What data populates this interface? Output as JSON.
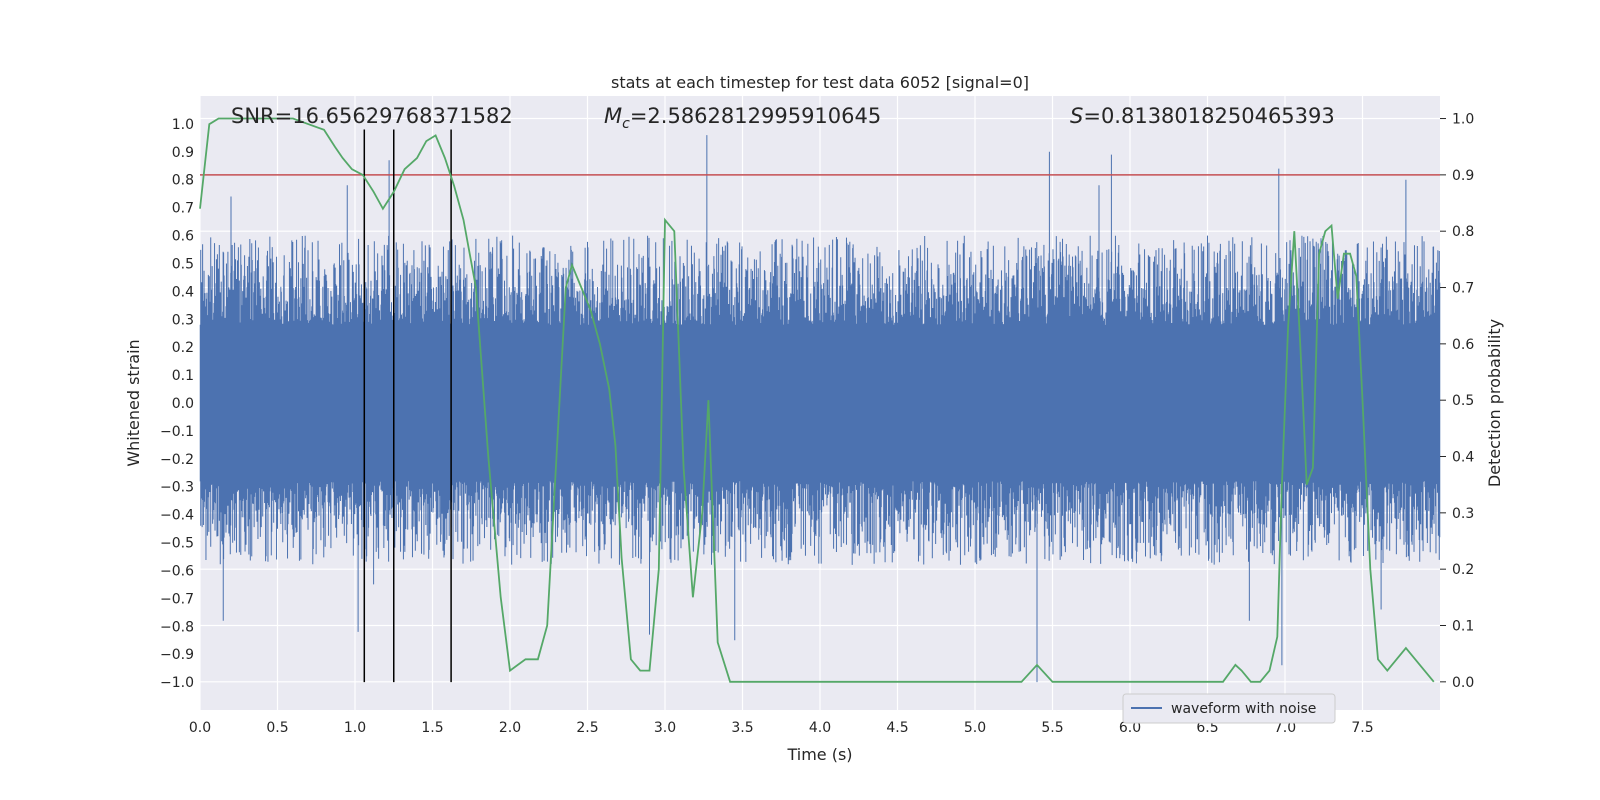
{
  "chart_data": {
    "type": "line",
    "title": "stats at each timestep for test data 6052 [signal=0]",
    "xlabel": "Time (s)",
    "ylabel": "Whitened strain",
    "ylabel_right": "Detection probability",
    "xlim": [
      0.0,
      8.0
    ],
    "ylim": [
      -1.1,
      1.1
    ],
    "ylim_right": [
      -0.05,
      1.04
    ],
    "x_ticks": [
      "0.0",
      "0.5",
      "1.0",
      "1.5",
      "2.0",
      "2.5",
      "3.0",
      "3.5",
      "4.0",
      "4.5",
      "5.0",
      "5.5",
      "6.0",
      "6.5",
      "7.0",
      "7.5"
    ],
    "y_ticks": [
      "1.0",
      "0.9",
      "0.8",
      "0.7",
      "0.6",
      "0.5",
      "0.4",
      "0.3",
      "0.2",
      "0.1",
      "0.0",
      "−0.1",
      "−0.2",
      "−0.3",
      "−0.4",
      "−0.5",
      "−0.6",
      "−0.7",
      "−0.8",
      "−0.9",
      "−1.0"
    ],
    "y_right_ticks": [
      "1.0",
      "0.9",
      "0.8",
      "0.7",
      "0.6",
      "0.5",
      "0.4",
      "0.3",
      "0.2",
      "0.1",
      "0.0"
    ],
    "grid": true,
    "legend_position": "bottom-right",
    "annotations": {
      "snr": "SNR=16.65629768371582",
      "mc_symbol": "M",
      "mc_sub": "c",
      "mc_value": "=2.5862812995910645",
      "s_symbol": "S",
      "s_value": "=0.8138018250465393"
    },
    "threshold": {
      "y_right": 0.9,
      "color": "#c44e52"
    },
    "vlines_x": [
      1.06,
      1.25,
      1.62
    ],
    "vline_range": [
      -1.0,
      0.98
    ],
    "waveform_series": {
      "name": "waveform with noise",
      "color": "#4c72b0",
      "peak_events": [
        {
          "x": 0.2,
          "y": 0.74
        },
        {
          "x": 0.15,
          "y": -0.78
        },
        {
          "x": 1.02,
          "y": -0.82
        },
        {
          "x": 1.22,
          "y": 0.87
        },
        {
          "x": 1.12,
          "y": -0.65
        },
        {
          "x": 3.27,
          "y": 0.96
        },
        {
          "x": 3.45,
          "y": -0.85
        },
        {
          "x": 2.9,
          "y": -0.83
        },
        {
          "x": 5.48,
          "y": 0.9
        },
        {
          "x": 5.88,
          "y": 0.89
        },
        {
          "x": 5.4,
          "y": -1.0
        },
        {
          "x": 6.96,
          "y": 0.84
        },
        {
          "x": 6.98,
          "y": -0.94
        },
        {
          "x": 7.78,
          "y": 0.8
        },
        {
          "x": 7.62,
          "y": -0.74
        },
        {
          "x": 5.8,
          "y": 0.78
        },
        {
          "x": 0.95,
          "y": 0.78
        },
        {
          "x": 6.77,
          "y": -0.78
        }
      ]
    },
    "probability_series": {
      "color": "#55a868",
      "x": [
        0.0,
        0.06,
        0.12,
        0.2,
        0.3,
        0.4,
        0.5,
        0.6,
        0.7,
        0.8,
        0.87,
        0.92,
        0.98,
        1.05,
        1.12,
        1.18,
        1.25,
        1.32,
        1.4,
        1.46,
        1.52,
        1.58,
        1.64,
        1.7,
        1.78,
        1.86,
        1.94,
        2.0,
        2.05,
        2.1,
        2.18,
        2.24,
        2.3,
        2.36,
        2.4,
        2.46,
        2.52,
        2.58,
        2.64,
        2.68,
        2.72,
        2.78,
        2.84,
        2.9,
        2.96,
        3.0,
        3.06,
        3.12,
        3.18,
        3.24,
        3.28,
        3.34,
        3.42,
        3.5,
        3.6,
        3.7,
        3.8,
        3.9,
        4.0,
        4.1,
        4.2,
        4.3,
        4.4,
        4.5,
        4.6,
        4.7,
        4.8,
        4.9,
        5.0,
        5.1,
        5.2,
        5.3,
        5.4,
        5.5,
        5.6,
        5.7,
        5.8,
        5.9,
        6.0,
        6.1,
        6.2,
        6.3,
        6.4,
        6.5,
        6.6,
        6.68,
        6.72,
        6.78,
        6.84,
        6.9,
        6.95,
        6.98,
        7.02,
        7.06,
        7.1,
        7.14,
        7.18,
        7.22,
        7.26,
        7.3,
        7.34,
        7.38,
        7.42,
        7.46,
        7.5,
        7.55,
        7.6,
        7.66,
        7.72,
        7.78,
        7.84,
        7.9,
        7.96
      ],
      "y": [
        0.84,
        0.99,
        1.0,
        1.0,
        1.0,
        1.0,
        1.0,
        1.0,
        0.99,
        0.98,
        0.95,
        0.93,
        0.91,
        0.9,
        0.87,
        0.84,
        0.87,
        0.91,
        0.93,
        0.96,
        0.97,
        0.93,
        0.88,
        0.82,
        0.7,
        0.4,
        0.15,
        0.02,
        0.03,
        0.04,
        0.04,
        0.1,
        0.4,
        0.7,
        0.74,
        0.7,
        0.66,
        0.6,
        0.52,
        0.42,
        0.22,
        0.04,
        0.02,
        0.02,
        0.2,
        0.82,
        0.8,
        0.38,
        0.15,
        0.3,
        0.5,
        0.07,
        0.0,
        0.0,
        0.0,
        0.0,
        0.0,
        0.0,
        0.0,
        0.0,
        0.0,
        0.0,
        0.0,
        0.0,
        0.0,
        0.0,
        0.0,
        0.0,
        0.0,
        0.0,
        0.0,
        0.0,
        0.03,
        0.0,
        0.0,
        0.0,
        0.0,
        0.0,
        0.0,
        0.0,
        0.0,
        0.0,
        0.0,
        0.0,
        0.0,
        0.03,
        0.02,
        0.0,
        0.0,
        0.02,
        0.08,
        0.35,
        0.63,
        0.8,
        0.59,
        0.35,
        0.38,
        0.76,
        0.8,
        0.81,
        0.68,
        0.76,
        0.76,
        0.72,
        0.5,
        0.2,
        0.04,
        0.02,
        0.04,
        0.06,
        0.04,
        0.02,
        0.0
      ]
    }
  }
}
